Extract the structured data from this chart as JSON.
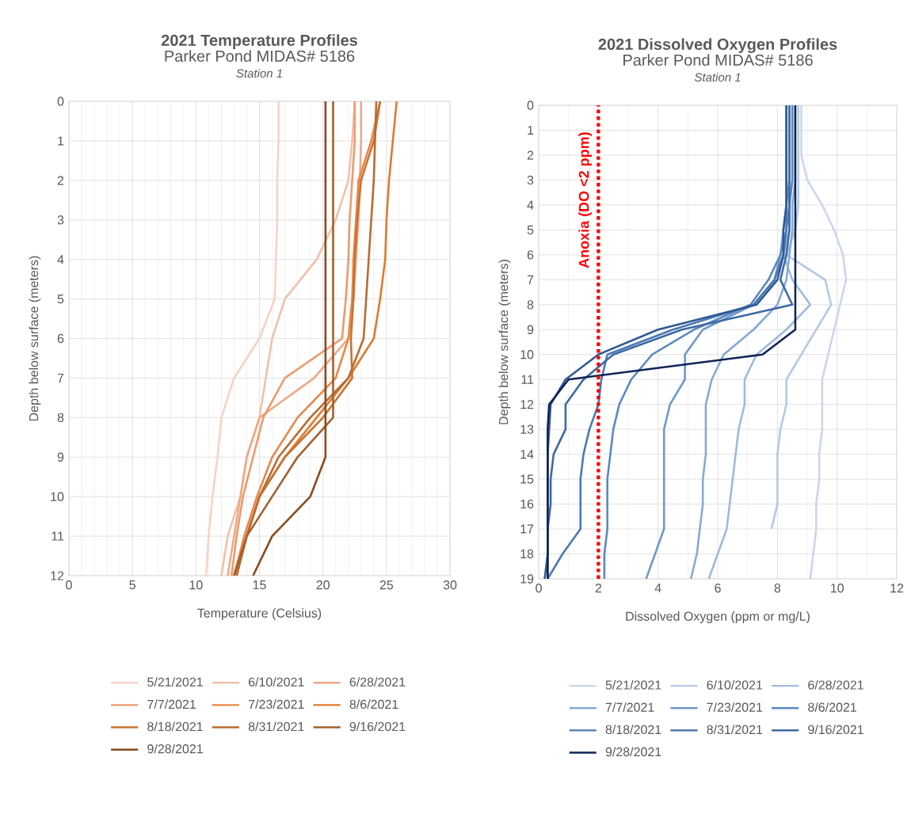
{
  "chart_data": [
    {
      "type": "line",
      "title": "2021 Temperature Profiles",
      "subtitle": "Parker Pond MIDAS# 5186",
      "annotations": [
        "Station 1"
      ],
      "xlabel": "Temperature (Celsius)",
      "ylabel": "Depth below surface (meters)",
      "xlim": [
        0,
        30
      ],
      "xticks": [
        0,
        5,
        10,
        15,
        20,
        25,
        30
      ],
      "ylim": [
        12,
        0
      ],
      "yticks": [
        0,
        1,
        2,
        3,
        4,
        5,
        6,
        7,
        8,
        9,
        10,
        11,
        12
      ],
      "grid": true,
      "legend": "bottom",
      "marker": "none",
      "line_style": "solid",
      "series": [
        {
          "name": "5/21/2021",
          "color": "#f5d3c6",
          "x": [
            16.5,
            16.5,
            16.4,
            16.4,
            16.3,
            16.2,
            15,
            13,
            12,
            11.7,
            11.3,
            11,
            10.8
          ],
          "values": [
            0,
            1,
            2,
            3,
            4,
            5,
            6,
            7,
            8,
            9,
            10,
            11,
            12
          ]
        },
        {
          "name": "6/10/2021",
          "color": "#f2c0ab",
          "x": [
            22.5,
            22.3,
            22,
            21,
            19.5,
            17,
            16,
            15.5,
            15,
            14,
            13.5,
            12.5,
            12
          ],
          "values": [
            0,
            1,
            2,
            3,
            4,
            5,
            6,
            7,
            8,
            9,
            10,
            11,
            12
          ]
        },
        {
          "name": "6/28/2021",
          "color": "#eea888",
          "x": [
            23,
            23,
            22.9,
            22.8,
            22.6,
            22.4,
            22,
            19.3,
            15,
            14,
            13.5,
            13,
            12.5
          ],
          "values": [
            0,
            1,
            2,
            3,
            4,
            5,
            6,
            7,
            8,
            9,
            10,
            11,
            12
          ]
        },
        {
          "name": "7/7/2021",
          "color": "#ec9a6d",
          "x": [
            22.5,
            22.5,
            22.3,
            22.1,
            22,
            21.8,
            21.5,
            17,
            15.3,
            14.5,
            13.7,
            13.2,
            12.8
          ],
          "values": [
            0,
            1,
            2,
            3,
            4,
            5,
            6,
            7,
            8,
            9,
            10,
            11,
            12
          ]
        },
        {
          "name": "7/23/2021",
          "color": "#e98748",
          "x": [
            24.5,
            23.8,
            22.8,
            22.6,
            22.4,
            22.3,
            22,
            21,
            18,
            16,
            14.8,
            13.8,
            13
          ],
          "values": [
            0,
            1,
            2,
            3,
            4,
            5,
            6,
            7,
            8,
            9,
            10,
            11,
            12
          ]
        },
        {
          "name": "8/6/2021",
          "color": "#e07a2c",
          "x": [
            25.8,
            25.5,
            25.2,
            25,
            24.9,
            24.5,
            24,
            22,
            19.5,
            17,
            15,
            14,
            13
          ],
          "values": [
            0,
            1,
            2,
            3,
            4,
            5,
            6,
            7,
            8,
            9,
            10,
            11,
            12
          ]
        },
        {
          "name": "8/18/2021",
          "color": "#c8722e",
          "x": [
            24.5,
            24,
            23,
            22.7,
            22.5,
            22.4,
            22.2,
            22.3,
            20,
            17,
            15,
            14,
            13.2
          ],
          "values": [
            0,
            1,
            2,
            3,
            4,
            5,
            6,
            7,
            8,
            9,
            10,
            11,
            12
          ]
        },
        {
          "name": "8/31/2021",
          "color": "#b86c32",
          "x": [
            24.2,
            24.1,
            24,
            23.8,
            23.6,
            23.4,
            23.2,
            22,
            19,
            16.5,
            15,
            14,
            13.2
          ],
          "values": [
            0,
            1,
            2,
            3,
            4,
            5,
            6,
            7,
            8,
            9,
            10,
            11,
            12
          ]
        },
        {
          "name": "9/16/2021",
          "color": "#a2612c",
          "x": [
            20.8,
            20.8,
            18,
            16,
            14,
            13
          ],
          "values": [
            0,
            8,
            9,
            10,
            11,
            12
          ]
        },
        {
          "name": "9/28/2021",
          "color": "#8b4a1c",
          "x": [
            20.2,
            20.2,
            19,
            16,
            14.5
          ],
          "values": [
            0,
            9,
            10,
            11,
            12
          ]
        }
      ]
    },
    {
      "type": "line",
      "title": "2021 Dissolved Oxygen Profiles",
      "subtitle": "Parker Pond MIDAS# 5186",
      "annotations": [
        "Station 1"
      ],
      "xlabel": "Dissolved Oxygen (ppm or mg/L)",
      "ylabel": "Depth below surface (meters)",
      "xlim": [
        0,
        12
      ],
      "xticks": [
        0,
        2,
        4,
        6,
        8,
        10,
        12
      ],
      "ylim": [
        19,
        0
      ],
      "yticks": [
        0,
        1,
        2,
        3,
        4,
        5,
        6,
        7,
        8,
        9,
        10,
        11,
        12,
        13,
        14,
        15,
        16,
        17,
        18,
        19
      ],
      "grid": true,
      "legend": "bottom",
      "marker": "none",
      "line_style": "solid",
      "ref_lines": [
        {
          "axis": "x",
          "value": 2,
          "label": "Anoxia (DO <2 ppm)",
          "color": "#ff0000",
          "line_style": "dotted"
        }
      ],
      "series": [
        {
          "name": "5/21/2021",
          "color": "#c9d7ec",
          "x": [
            8.8,
            8.8,
            9,
            9.5,
            9.9,
            10.2,
            10.3,
            10.1,
            9.9,
            9.7,
            9.5,
            9.5,
            9.4,
            9.4,
            9.3,
            9.3,
            9.2,
            9.1
          ],
          "values": [
            0,
            2,
            3,
            4,
            5,
            6,
            7,
            8,
            9,
            10,
            11,
            13,
            14,
            15,
            16,
            17,
            18,
            19
          ]
        },
        {
          "name": "6/10/2021",
          "color": "#b6c9e4",
          "x": [
            8.7,
            8.7,
            8.6,
            8.3,
            9.6,
            9.8,
            9.3,
            8.8,
            8.3,
            8.3,
            8.1,
            8,
            8,
            7.8
          ],
          "values": [
            0,
            4,
            5,
            6,
            7,
            8,
            9,
            10,
            11,
            12,
            13,
            14,
            16,
            17
          ]
        },
        {
          "name": "6/28/2021",
          "color": "#9fb9dd",
          "x": [
            8.5,
            8.5,
            8.4,
            8.4,
            8.2,
            8.5,
            9.1,
            8.3,
            7.3,
            6.9,
            6.9,
            6.7,
            6.6,
            6.5,
            6.4,
            6.3,
            6,
            5.7
          ],
          "values": [
            0,
            3,
            4,
            5,
            6,
            7,
            8,
            9,
            10,
            11,
            12,
            13,
            14,
            15,
            16,
            17,
            18,
            19
          ]
        },
        {
          "name": "7/7/2021",
          "color": "#86a9d6",
          "x": [
            8.6,
            8.6,
            8.5,
            8.5,
            8.4,
            8.3,
            8,
            7.2,
            6.2,
            5.8,
            5.6,
            5.6,
            5.5,
            5.5,
            5.4,
            5.3,
            5.1
          ],
          "values": [
            0,
            3,
            4,
            5,
            6,
            7,
            8,
            9,
            10,
            11,
            12,
            14,
            15,
            16,
            17,
            18,
            19
          ]
        },
        {
          "name": "7/23/2021",
          "color": "#6f98cc",
          "x": [
            8.4,
            8.4,
            8.3,
            8.2,
            8.1,
            7.9,
            7.2,
            5.5,
            4.9,
            4.9,
            4.4,
            4.2,
            4.2,
            3.9,
            3.6
          ],
          "values": [
            0,
            3,
            4,
            5,
            6,
            7,
            8,
            9,
            10,
            11,
            12,
            13,
            17,
            18,
            19
          ]
        },
        {
          "name": "8/6/2021",
          "color": "#5b88c0",
          "x": [
            8.5,
            8.5,
            8.4,
            8.3,
            8.1,
            7.7,
            7.1,
            5.2,
            3.8,
            3.1,
            2.7,
            2.5,
            2.4,
            2.3,
            2.3,
            2.2,
            2.2
          ],
          "values": [
            0,
            3,
            4,
            5,
            6,
            7,
            8,
            9,
            10,
            11,
            12,
            13,
            14,
            15,
            17,
            18,
            19
          ]
        },
        {
          "name": "8/18/2021",
          "color": "#4c79b3",
          "x": [
            8.3,
            8.3,
            8.2,
            7.9,
            7.2,
            4.5,
            2.3,
            2.1,
            2,
            1.7,
            1.5,
            1.4,
            1.4,
            0.8,
            0.3
          ],
          "values": [
            0,
            5,
            6,
            7,
            8,
            9,
            10,
            11,
            12,
            13,
            14,
            15,
            17,
            18,
            19
          ]
        },
        {
          "name": "8/31/2021",
          "color": "#3d6aa4",
          "x": [
            8.4,
            8.4,
            8.3,
            8.1,
            8.5,
            4.8,
            2.5,
            1.5,
            0.9,
            0.9,
            0.5,
            0.4,
            0.4,
            0.3,
            0.3
          ],
          "values": [
            0,
            5,
            6,
            7,
            8,
            9,
            10,
            11,
            12,
            13,
            14,
            15,
            16,
            17,
            19
          ]
        },
        {
          "name": "9/16/2021",
          "color": "#2f5a93",
          "x": [
            8.3,
            8.3,
            8.2,
            8.2,
            8,
            7.3,
            4,
            2,
            0.9,
            0.4,
            0.35,
            0.3,
            0.3,
            0.2
          ],
          "values": [
            0,
            4,
            5,
            6,
            7,
            8,
            9,
            10,
            11,
            12,
            13,
            14,
            18,
            19
          ]
        },
        {
          "name": "9/28/2021",
          "color": "#0f2456",
          "x": [
            8.6,
            8.6,
            7.5,
            1,
            0.35,
            0.3,
            0.3
          ],
          "values": [
            0,
            9,
            10,
            11,
            12,
            13,
            19
          ]
        }
      ]
    }
  ]
}
